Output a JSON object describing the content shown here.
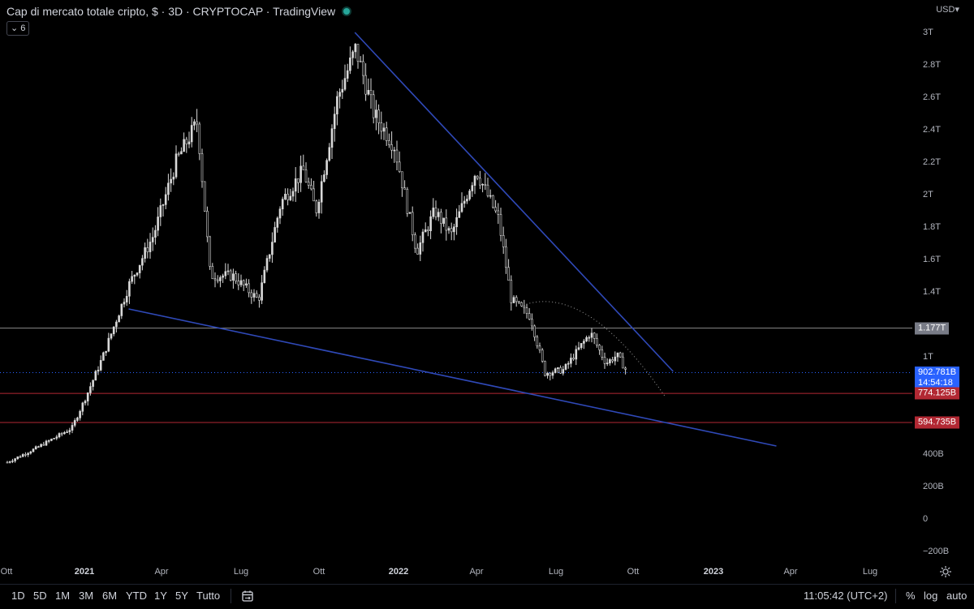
{
  "header": {
    "title": "Cap di mercato totale cripto, $ · 3D · CRYPTOCAP · TradingView",
    "collapse_label": "⌄ 6",
    "currency": "USD",
    "currency_chevron": "▾"
  },
  "y_axis": {
    "ticks": [
      "3T",
      "2.8T",
      "2.6T",
      "2.4T",
      "2.2T",
      "2T",
      "1.8T",
      "1.6T",
      "1.4T",
      "1T",
      "400B",
      "200B",
      "0",
      "−200B"
    ],
    "tick_values": [
      3000,
      2800,
      2600,
      2400,
      2200,
      2000,
      1800,
      1600,
      1400,
      1000,
      400,
      200,
      0,
      -200
    ]
  },
  "price_labels": {
    "resistance": {
      "value_text": "1.177T",
      "value": 1177,
      "color": "#787b86"
    },
    "last": {
      "value_text": "902.781B",
      "countdown": "14:54:18",
      "value": 902.781,
      "color": "#2962ff"
    },
    "support_1": {
      "value_text": "774.125B",
      "value": 774.125,
      "color": "#b22833"
    },
    "support_2": {
      "value_text": "594.735B",
      "value": 594.735,
      "color": "#b22833"
    }
  },
  "x_axis": {
    "labels": [
      {
        "text": "Ott",
        "bold": false
      },
      {
        "text": "2021",
        "bold": true
      },
      {
        "text": "Apr",
        "bold": false
      },
      {
        "text": "Lug",
        "bold": false
      },
      {
        "text": "Ott",
        "bold": false
      },
      {
        "text": "2022",
        "bold": true
      },
      {
        "text": "Apr",
        "bold": false
      },
      {
        "text": "Lug",
        "bold": false
      },
      {
        "text": "Ott",
        "bold": false
      },
      {
        "text": "2023",
        "bold": true
      },
      {
        "text": "Apr",
        "bold": false
      },
      {
        "text": "Lug",
        "bold": false
      }
    ]
  },
  "bottom_bar": {
    "timeframes": [
      "1D",
      "5D",
      "1M",
      "3M",
      "6M",
      "YTD",
      "1Y",
      "5Y",
      "Tutto"
    ],
    "clock": "11:05:42 (UTC+2)",
    "percent": "%",
    "log": "log",
    "auto": "auto"
  },
  "colors": {
    "background": "#000000",
    "candle": "#d9d9d9",
    "trendline": "#2f49b8",
    "support": "#b22833",
    "resistance": "#8a8a8a",
    "last_price": "#2962ff"
  },
  "chart_data": {
    "type": "candlestick",
    "symbol": "CRYPTOCAP",
    "interval": "3D",
    "unit": "USD billions",
    "ylim": [
      -200,
      3100
    ],
    "close_path": [
      {
        "date": "2020-10-01",
        "value": 350
      },
      {
        "date": "2020-11-01",
        "value": 430
      },
      {
        "date": "2020-12-15",
        "value": 560
      },
      {
        "date": "2021-01-01",
        "value": 760
      },
      {
        "date": "2021-01-20",
        "value": 1000
      },
      {
        "date": "2021-02-20",
        "value": 1450
      },
      {
        "date": "2021-03-20",
        "value": 1750
      },
      {
        "date": "2021-04-15",
        "value": 2200
      },
      {
        "date": "2021-05-10",
        "value": 2450
      },
      {
        "date": "2021-05-25",
        "value": 1500
      },
      {
        "date": "2021-06-20",
        "value": 1500
      },
      {
        "date": "2021-07-20",
        "value": 1350
      },
      {
        "date": "2021-08-15",
        "value": 1950
      },
      {
        "date": "2021-09-10",
        "value": 2150
      },
      {
        "date": "2021-09-25",
        "value": 1900
      },
      {
        "date": "2021-10-20",
        "value": 2600
      },
      {
        "date": "2021-11-10",
        "value": 2900
      },
      {
        "date": "2021-12-01",
        "value": 2500
      },
      {
        "date": "2021-12-25",
        "value": 2300
      },
      {
        "date": "2022-01-20",
        "value": 1650
      },
      {
        "date": "2022-02-10",
        "value": 1900
      },
      {
        "date": "2022-03-01",
        "value": 1750
      },
      {
        "date": "2022-03-30",
        "value": 2150
      },
      {
        "date": "2022-04-25",
        "value": 1850
      },
      {
        "date": "2022-05-10",
        "value": 1350
      },
      {
        "date": "2022-06-01",
        "value": 1250
      },
      {
        "date": "2022-06-18",
        "value": 900
      },
      {
        "date": "2022-07-10",
        "value": 920
      },
      {
        "date": "2022-08-10",
        "value": 1150
      },
      {
        "date": "2022-08-28",
        "value": 960
      },
      {
        "date": "2022-09-10",
        "value": 1010
      },
      {
        "date": "2022-09-22",
        "value": 903
      }
    ],
    "drawings": [
      {
        "type": "trendline",
        "name": "upper-trendline",
        "from": {
          "date": "2021-11-10",
          "value": 3000
        },
        "to": {
          "date": "2022-11-15",
          "value": 910
        }
      },
      {
        "type": "trendline",
        "name": "lower-trendline",
        "from": {
          "date": "2021-02-20",
          "value": 1295
        },
        "to": {
          "date": "2023-03-15",
          "value": 450
        }
      },
      {
        "type": "horizontal",
        "name": "resistance-line",
        "value": 1177
      },
      {
        "type": "horizontal",
        "name": "support-line-1",
        "value": 774.125
      },
      {
        "type": "horizontal",
        "name": "support-line-2",
        "value": 594.735
      },
      {
        "type": "horizontal",
        "name": "last-price-line",
        "value": 902.781,
        "style": "dotted"
      },
      {
        "type": "arc",
        "name": "dotted-arc",
        "from": {
          "date": "2022-06-01",
          "value": 1330
        },
        "to": {
          "date": "2022-11-05",
          "value": 760
        },
        "style": "dotted"
      }
    ]
  }
}
